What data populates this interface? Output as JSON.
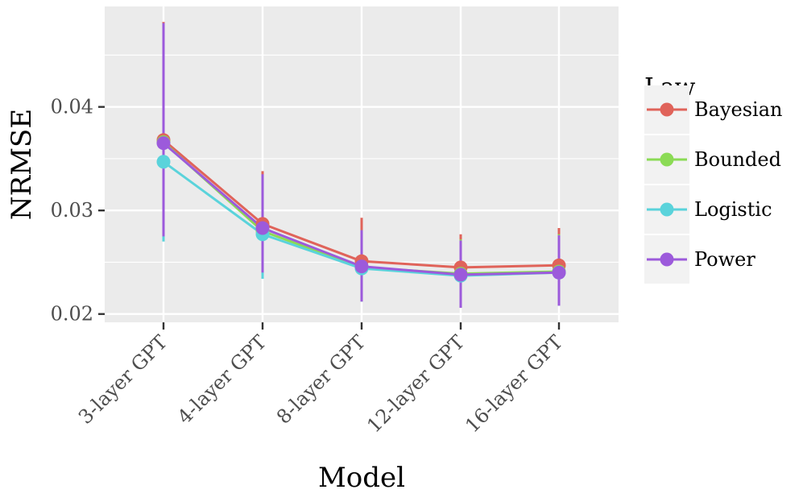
{
  "chart_data": {
    "type": "line",
    "title": "",
    "xlabel": "Model",
    "ylabel": "NRMSE",
    "categories": [
      "3-layer GPT",
      "4-layer GPT",
      "8-layer GPT",
      "12-layer GPT",
      "16-layer GPT"
    ],
    "ylim": [
      0.0192,
      0.0497
    ],
    "yticks": [
      0.02,
      0.03,
      0.04
    ],
    "ytick_labels": [
      "0.02",
      "0.03",
      "0.04"
    ],
    "grid": true,
    "legend": {
      "title": "Law",
      "position": "right"
    },
    "series": [
      {
        "name": "Bayesian",
        "color": "#E0635A",
        "values": [
          0.0368,
          0.0287,
          0.0251,
          0.0245,
          0.0247
        ],
        "err_low": [
          0.0275,
          0.024,
          0.0213,
          0.0208,
          0.021
        ],
        "err_high": [
          0.0482,
          0.0338,
          0.0293,
          0.0277,
          0.0283
        ]
      },
      {
        "name": "Bounded",
        "color": "#8BDB55",
        "values": [
          0.0366,
          0.028,
          0.0245,
          0.0239,
          0.0241
        ],
        "err_low": [
          0.0273,
          0.0237,
          0.0212,
          0.0207,
          0.0209
        ],
        "err_high": [
          0.048,
          0.0334,
          0.0281,
          0.0272,
          0.0277
        ]
      },
      {
        "name": "Logistic",
        "color": "#5AD3DB",
        "values": [
          0.0347,
          0.0277,
          0.0244,
          0.0237,
          0.024
        ],
        "err_low": [
          0.027,
          0.0234,
          0.0212,
          0.0206,
          0.0208
        ],
        "err_high": [
          0.048,
          0.033,
          0.028,
          0.027,
          0.0276
        ]
      },
      {
        "name": "Power",
        "color": "#9C5ADB",
        "values": [
          0.0365,
          0.0283,
          0.0246,
          0.0238,
          0.024
        ],
        "err_low": [
          0.0275,
          0.024,
          0.0212,
          0.0206,
          0.0208
        ],
        "err_high": [
          0.0481,
          0.0335,
          0.0281,
          0.0271,
          0.0276
        ]
      }
    ]
  }
}
